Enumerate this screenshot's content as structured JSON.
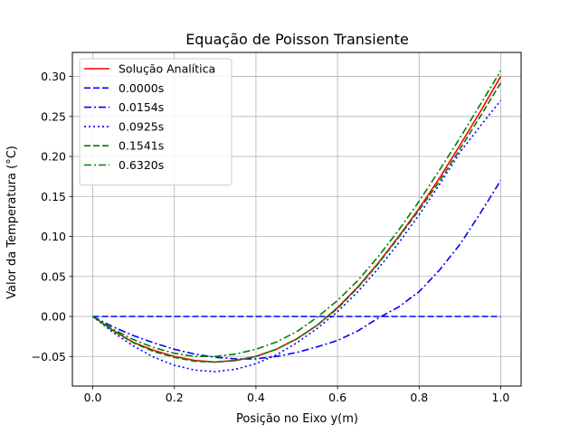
{
  "chart_data": {
    "type": "line",
    "title": "Equação de Poisson Transiente",
    "xlabel": "Posição no Eixo y(m)",
    "ylabel": "Valor da Temperatura (°C)",
    "xlim": [
      -0.05,
      1.05
    ],
    "ylim": [
      -0.087,
      0.33
    ],
    "xticks": [
      0.0,
      0.2,
      0.4,
      0.6,
      0.8,
      1.0
    ],
    "xtick_labels": [
      "0.0",
      "0.2",
      "0.4",
      "0.6",
      "0.8",
      "1.0"
    ],
    "yticks": [
      -0.05,
      0.0,
      0.05,
      0.1,
      0.15,
      0.2,
      0.25,
      0.3
    ],
    "ytick_labels": [
      "−0.05",
      "0.00",
      "0.05",
      "0.10",
      "0.15",
      "0.20",
      "0.25",
      "0.30"
    ],
    "grid": true,
    "legend_position": "top-left",
    "x": [
      0.0,
      0.05,
      0.1,
      0.15,
      0.2,
      0.25,
      0.3,
      0.35,
      0.4,
      0.45,
      0.5,
      0.55,
      0.6,
      0.65,
      0.7,
      0.75,
      0.8,
      0.85,
      0.9,
      0.95,
      1.0
    ],
    "series": [
      {
        "name": "Solução Analítica",
        "color": "#ff0000",
        "dash": "solid",
        "values": [
          0.0,
          -0.0175,
          -0.0325,
          -0.0425,
          -0.05,
          -0.055,
          -0.057,
          -0.055,
          -0.05,
          -0.041,
          -0.028,
          -0.011,
          0.011,
          0.037,
          0.067,
          0.1,
          0.135,
          0.173,
          0.214,
          0.256,
          0.3
        ]
      },
      {
        "name": "0.0000s",
        "color": "#0000ff",
        "dash": "dashed",
        "values": [
          0.0,
          0.0,
          0.0,
          0.0,
          0.0,
          0.0,
          0.0,
          0.0,
          0.0,
          0.0,
          0.0,
          0.0,
          0.0,
          0.0,
          0.0,
          0.0,
          0.0,
          0.0,
          0.0,
          0.0,
          0.0
        ]
      },
      {
        "name": "0.0154s",
        "color": "#0000ff",
        "dash": "dashdot",
        "values": [
          0.0,
          -0.013,
          -0.024,
          -0.033,
          -0.041,
          -0.047,
          -0.051,
          -0.053,
          -0.053,
          -0.05,
          -0.045,
          -0.038,
          -0.03,
          -0.018,
          -0.002,
          0.012,
          0.031,
          0.058,
          0.09,
          0.129,
          0.17
        ]
      },
      {
        "name": "0.0925s",
        "color": "#0000ff",
        "dash": "dotted",
        "values": [
          0.0,
          -0.02,
          -0.037,
          -0.051,
          -0.061,
          -0.067,
          -0.069,
          -0.066,
          -0.059,
          -0.048,
          -0.033,
          -0.015,
          0.006,
          0.031,
          0.06,
          0.092,
          0.127,
          0.165,
          0.205,
          0.238,
          0.27
        ]
      },
      {
        "name": "0.1541s",
        "color": "#008000",
        "dash": "dashed",
        "values": [
          0.0,
          -0.018,
          -0.033,
          -0.044,
          -0.051,
          -0.056,
          -0.057,
          -0.055,
          -0.05,
          -0.041,
          -0.028,
          -0.011,
          0.01,
          0.036,
          0.066,
          0.099,
          0.133,
          0.169,
          0.209,
          0.25,
          0.292
        ]
      },
      {
        "name": "0.6320s",
        "color": "#008000",
        "dash": "dashdot",
        "values": [
          0.0,
          -0.016,
          -0.029,
          -0.039,
          -0.046,
          -0.05,
          -0.05,
          -0.047,
          -0.041,
          -0.032,
          -0.019,
          -0.001,
          0.02,
          0.045,
          0.075,
          0.108,
          0.144,
          0.183,
          0.223,
          0.265,
          0.307
        ]
      }
    ]
  }
}
